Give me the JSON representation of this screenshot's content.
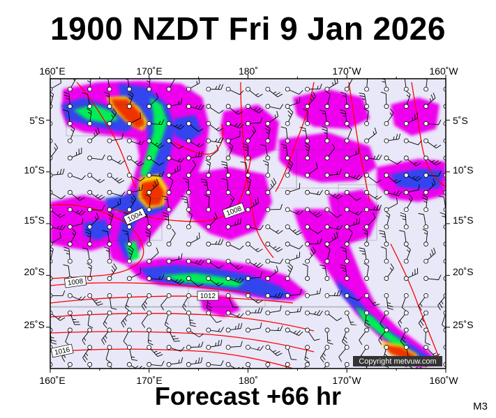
{
  "header": {
    "title": "1900 NZDT Fri 9 Jan 2026",
    "subtitle": "Forecast +66 hr",
    "corner_label": "M3"
  },
  "map": {
    "extent": {
      "lon_east_min": 160,
      "lon_east_max": 200,
      "lat_min": -29,
      "lat_max": -1
    },
    "lon_ticks": [
      {
        "lon": 160,
        "label": "160˚E"
      },
      {
        "lon": 170,
        "label": "170˚E"
      },
      {
        "lon": 180,
        "label": "180˚"
      },
      {
        "lon": 190,
        "label": "170˚W"
      },
      {
        "lon": 200,
        "label": "160˚W"
      }
    ],
    "lat_ticks": [
      {
        "lat": -5,
        "label": "5˚S"
      },
      {
        "lat": -10,
        "label": "10˚S"
      },
      {
        "lat": -15,
        "label": "15˚S"
      },
      {
        "lat": -20,
        "label": "20˚S"
      },
      {
        "lat": -25,
        "label": "25˚S"
      }
    ],
    "isobar_labels": [
      {
        "text": "1004",
        "lon": 168.6,
        "lat": -14.9
      },
      {
        "text": "1008",
        "lon": 180.4,
        "lat": -14.4
      },
      {
        "text": "1008",
        "lon": 162.7,
        "lat": -21.1
      },
      {
        "text": "1012",
        "lon": 175.9,
        "lat": -22.6
      },
      {
        "text": "1016",
        "lon": 161.2,
        "lat": -27.7
      }
    ],
    "copyright": "Copyright metvuw.com",
    "colors": {
      "background": "#e8e8f8",
      "light_rain": "#ee00ee",
      "mid_rain": "#3344ee",
      "heavy_rain": "#00ee55",
      "very_heavy_rain": "#ffdd00",
      "extreme_rain": "#ee3300",
      "isobar": "#ff0000"
    }
  }
}
